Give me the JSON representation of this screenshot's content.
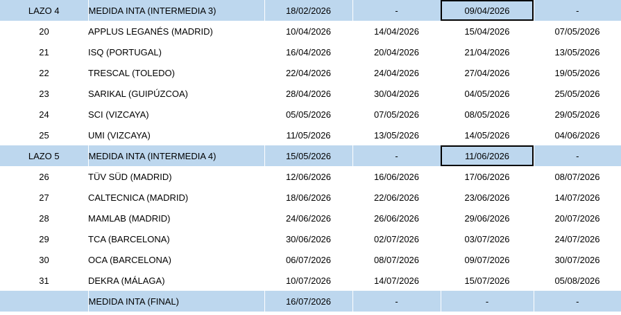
{
  "rows": [
    {
      "band": true,
      "num": "LAZO 4",
      "lab": "MEDIDA INTA (INTERMEDIA 3)",
      "d1": "18/02/2026",
      "d2": "-",
      "d3": "09/04/2026",
      "d4": "-",
      "boxed": true
    },
    {
      "band": false,
      "num": "20",
      "lab": "APPLUS LEGANÉS (MADRID)",
      "d1": "10/04/2026",
      "d2": "14/04/2026",
      "d3": "15/04/2026",
      "d4": "07/05/2026"
    },
    {
      "band": false,
      "num": "21",
      "lab": "ISQ (PORTUGAL)",
      "d1": "16/04/2026",
      "d2": "20/04/2026",
      "d3": "21/04/2026",
      "d4": "13/05/2026"
    },
    {
      "band": false,
      "num": "22",
      "lab": "TRESCAL (TOLEDO)",
      "d1": "22/04/2026",
      "d2": "24/04/2026",
      "d3": "27/04/2026",
      "d4": "19/05/2026"
    },
    {
      "band": false,
      "num": "23",
      "lab": "SARIKAL (GUIPÚZCOA)",
      "d1": "28/04/2026",
      "d2": "30/04/2026",
      "d3": "04/05/2026",
      "d4": "25/05/2026"
    },
    {
      "band": false,
      "num": "24",
      "lab": "SCI (VIZCAYA)",
      "d1": "05/05/2026",
      "d2": "07/05/2026",
      "d3": "08/05/2026",
      "d4": "29/05/2026"
    },
    {
      "band": false,
      "num": "25",
      "lab": "UMI (VIZCAYA)",
      "d1": "11/05/2026",
      "d2": "13/05/2026",
      "d3": "14/05/2026",
      "d4": "04/06/2026"
    },
    {
      "band": true,
      "num": "LAZO 5",
      "lab": "MEDIDA INTA (INTERMEDIA 4)",
      "d1": "15/05/2026",
      "d2": "-",
      "d3": "11/06/2026",
      "d4": "-",
      "boxed": true
    },
    {
      "band": false,
      "num": "26",
      "lab": "TÜV SÜD (MADRID)",
      "d1": "12/06/2026",
      "d2": "16/06/2026",
      "d3": "17/06/2026",
      "d4": "08/07/2026"
    },
    {
      "band": false,
      "num": "27",
      "lab": "CALTECNICA (MADRID)",
      "d1": "18/06/2026",
      "d2": "22/06/2026",
      "d3": "23/06/2026",
      "d4": "14/07/2026"
    },
    {
      "band": false,
      "num": "28",
      "lab": "MAMLAB (MADRID)",
      "d1": "24/06/2026",
      "d2": "26/06/2026",
      "d3": "29/06/2026",
      "d4": "20/07/2026"
    },
    {
      "band": false,
      "num": "29",
      "lab": "TCA (BARCELONA)",
      "d1": "30/06/2026",
      "d2": "02/07/2026",
      "d3": "03/07/2026",
      "d4": "24/07/2026"
    },
    {
      "band": false,
      "num": "30",
      "lab": "OCA (BARCELONA)",
      "d1": "06/07/2026",
      "d2": "08/07/2026",
      "d3": "09/07/2026",
      "d4": "30/07/2026"
    },
    {
      "band": false,
      "num": "31",
      "lab": "DEKRA (MÁLAGA)",
      "d1": "10/07/2026",
      "d2": "14/07/2026",
      "d3": "15/07/2026",
      "d4": "05/08/2026"
    },
    {
      "band": true,
      "num": "",
      "lab": "MEDIDA INTA (FINAL)",
      "d1": "16/07/2026",
      "d2": "-",
      "d3": "-",
      "d4": "-"
    }
  ],
  "colors": {
    "band": "#bdd7ee",
    "plain": "#ffffff"
  }
}
